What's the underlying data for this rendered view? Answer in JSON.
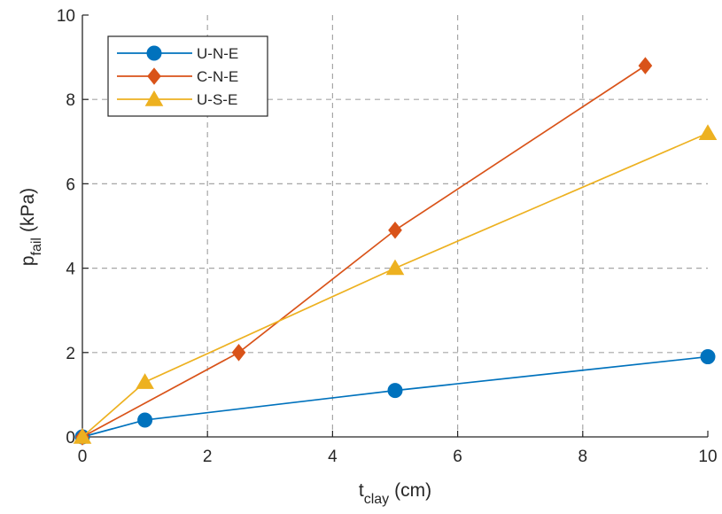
{
  "chart_data": {
    "type": "line",
    "title": "",
    "xlabel": {
      "main": "t",
      "sub": "clay",
      "unit": "(cm)"
    },
    "ylabel": {
      "main": "p",
      "sub": "fail",
      "unit": "(kPa)"
    },
    "xlim": [
      0,
      10
    ],
    "ylim": [
      0,
      10
    ],
    "x_ticks": [
      0,
      2,
      4,
      6,
      8,
      10
    ],
    "y_ticks": [
      0,
      2,
      4,
      6,
      8,
      10
    ],
    "grid": true,
    "legend_position": "top-left",
    "series": [
      {
        "name": "U-N-E",
        "color": "#0072BD",
        "marker": "circle",
        "x": [
          0,
          1,
          5,
          10
        ],
        "y": [
          0,
          0.4,
          1.1,
          1.9
        ]
      },
      {
        "name": "C-N-E",
        "color": "#D95319",
        "marker": "diamond",
        "x": [
          0,
          2.5,
          5,
          9
        ],
        "y": [
          0,
          2.0,
          4.9,
          8.8
        ]
      },
      {
        "name": "U-S-E",
        "color": "#EDB120",
        "marker": "triangle",
        "x": [
          0,
          1,
          5,
          10
        ],
        "y": [
          0,
          1.3,
          4.0,
          7.2
        ]
      }
    ]
  }
}
